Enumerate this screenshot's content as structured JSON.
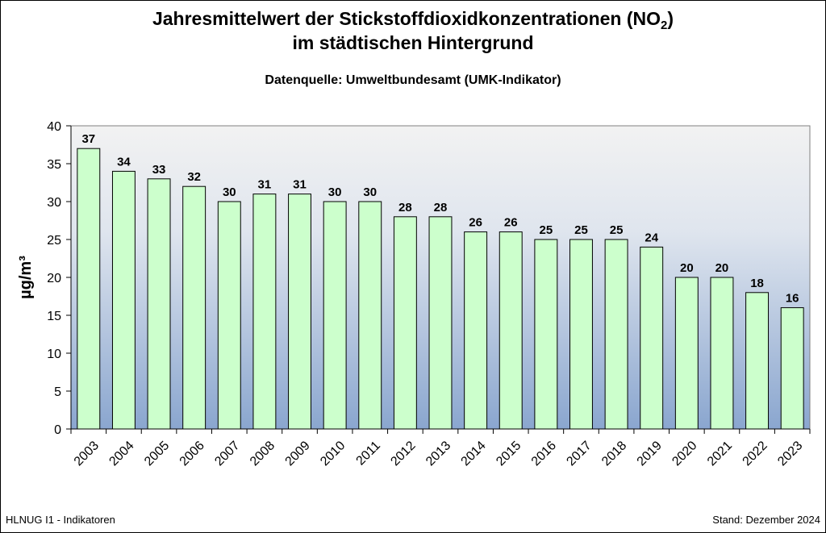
{
  "chart_data": {
    "type": "bar",
    "title_line1_prefix": "Jahresmittelwert der Stickstoffdioxidkonzentrationen (NO",
    "title_line1_sub": "2",
    "title_line1_suffix": ")",
    "title_line2": "im städtischen Hintergrund",
    "subtitle": "Datenquelle: Umweltbundesamt (UMK-Indikator)",
    "xlabel": "",
    "ylabel": "µg/m³",
    "ylim": [
      0,
      40
    ],
    "yticks": [
      0,
      5,
      10,
      15,
      20,
      25,
      30,
      35,
      40
    ],
    "categories": [
      "2003",
      "2004",
      "2005",
      "2006",
      "2007",
      "2008",
      "2009",
      "2010",
      "2011",
      "2012",
      "2013",
      "2014",
      "2015",
      "2016",
      "2017",
      "2018",
      "2019",
      "2020",
      "2021",
      "2022",
      "2023"
    ],
    "values": [
      37,
      34,
      33,
      32,
      30,
      31,
      31,
      30,
      30,
      28,
      28,
      26,
      26,
      25,
      25,
      25,
      24,
      20,
      20,
      18,
      16
    ],
    "grid": false,
    "bar_color": "#ccffcc",
    "bar_stroke": "#000000",
    "plot_background_top": "#f2f2f2",
    "plot_background_bottom": "#8aa6cf"
  },
  "footer": {
    "left": "HLNUG I1 - Indikatoren",
    "right": "Stand: Dezember 2024"
  }
}
